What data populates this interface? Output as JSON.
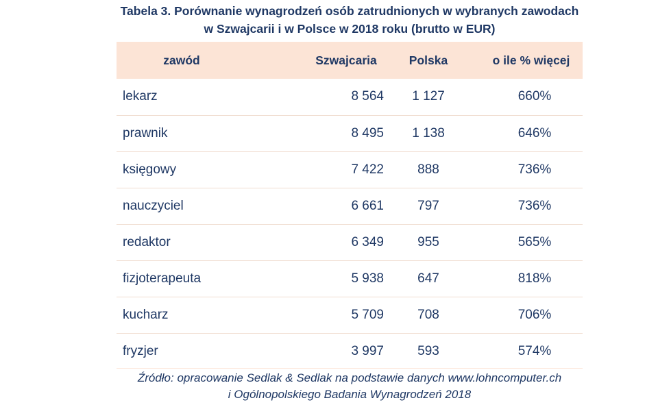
{
  "title": {
    "line1": "Tabela 3. Porównanie wynagrodzeń osób zatrudnionych w wybranych zawodach",
    "line2": "w Szwajcarii i w Polsce w 2018 roku (brutto w EUR)"
  },
  "table": {
    "headers": [
      "zawód",
      "Szwajcaria",
      "Polska",
      "o ile % więcej"
    ],
    "rows": [
      [
        "lekarz",
        "8 564",
        "1 127",
        "660%"
      ],
      [
        "prawnik",
        "8 495",
        "1 138",
        "646%"
      ],
      [
        "księgowy",
        "7 422",
        "888",
        "736%"
      ],
      [
        "nauczyciel",
        "6 661",
        "797",
        "736%"
      ],
      [
        "redaktor",
        "6 349",
        "955",
        "565%"
      ],
      [
        "fizjoterapeuta",
        "5 938",
        "647",
        "818%"
      ],
      [
        "kucharz",
        "5 709",
        "708",
        "706%"
      ],
      [
        "fryzjer",
        "3 997",
        "593",
        "574%"
      ]
    ]
  },
  "source": {
    "line1": "Źródło: opracowanie Sedlak & Sedlak na podstawie danych www.lohncomputer.ch",
    "line2": "i Ogólnopolskiego Badania Wynagrodzeń 2018"
  },
  "colors": {
    "text": "#1f3864",
    "header_bg": "#fce4d6",
    "row_border": "#f0dccf"
  }
}
